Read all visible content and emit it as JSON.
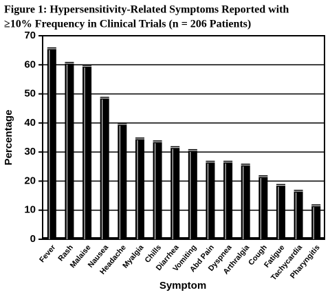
{
  "chart_data": {
    "type": "bar",
    "title": [
      "Figure 1: Hypersensitivity-Related Symptoms Reported with",
      "≥10% Frequency in Clinical Trials (n = 206 Patients)"
    ],
    "x_label": "Symptom",
    "y_label": "Percentage",
    "categories": [
      "Fever",
      "Rash",
      "Malaise",
      "Nausea",
      "Headache",
      "Myalgia",
      "Chills",
      "Diarrhea",
      "Vomiting",
      "Abd Pain",
      "Dyspnea",
      "Arthralgia",
      "Cough",
      "Fatigue",
      "Tachycardia",
      "Pharyngitis"
    ],
    "values": [
      66,
      61,
      60,
      49,
      40,
      35,
      34,
      32,
      31,
      27,
      27,
      26,
      22,
      19,
      17,
      12
    ],
    "color": "#000000",
    "ylim": [
      0,
      70
    ],
    "yticks": [
      0,
      10,
      20,
      30,
      40,
      50,
      60,
      70
    ],
    "grid": true
  }
}
